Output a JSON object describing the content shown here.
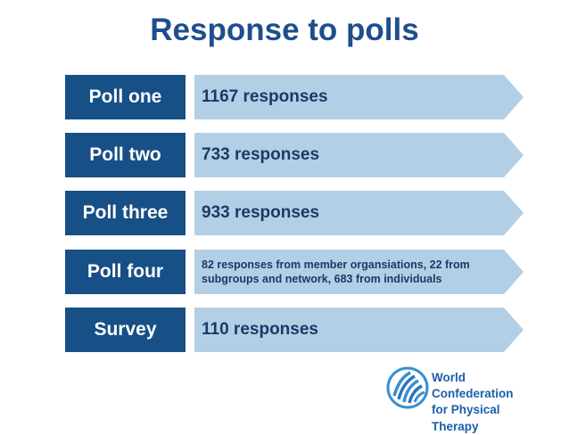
{
  "title": "Response to polls",
  "rows": [
    {
      "label": "Poll one",
      "text": "1167 responses"
    },
    {
      "label": "Poll two",
      "text": "733 responses"
    },
    {
      "label": "Poll three",
      "text": "933 responses"
    },
    {
      "label": "Poll four",
      "text": "82 responses from member organsiations, 22 from subgroups and network, 683 from individuals"
    },
    {
      "label": "Survey",
      "text": "110 responses"
    }
  ],
  "logo": {
    "line1": "World Confederation",
    "line2": "for Physical Therapy"
  },
  "colors": {
    "label_bg": "#174f87",
    "arrow_bg": "#b3cfe6",
    "title": "#1f4e8c",
    "logo": "#1d5ea8"
  }
}
